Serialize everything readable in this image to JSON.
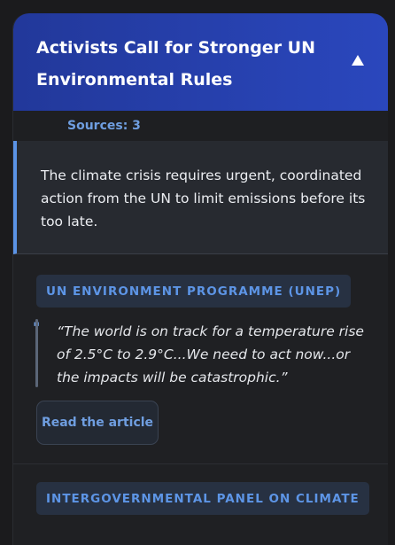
{
  "card": {
    "title": "Activists Call for Stronger UN Environmental Rules",
    "collapse_icon": "triangle-up-icon",
    "sources_label": "Sources: 3",
    "summary": "The climate crisis requires urgent, coordinated action from the UN to limit emissions before its too late."
  },
  "sources": [
    {
      "name": "UN ENVIRONMENT PROGRAMME (UNEP)",
      "quote": "“The world is on track for a temperature rise of 2.5°C to 2.9°C...We need to act now...or the impacts will be catastrophic.”",
      "quote_mark": "\"",
      "button_label": "Read the article"
    },
    {
      "name": "INTERGOVERNMENTAL PANEL ON CLIMATE"
    }
  ],
  "colors": {
    "header": "#2a47bd",
    "accent": "#6f9ee0",
    "background": "#1b1b1d"
  }
}
